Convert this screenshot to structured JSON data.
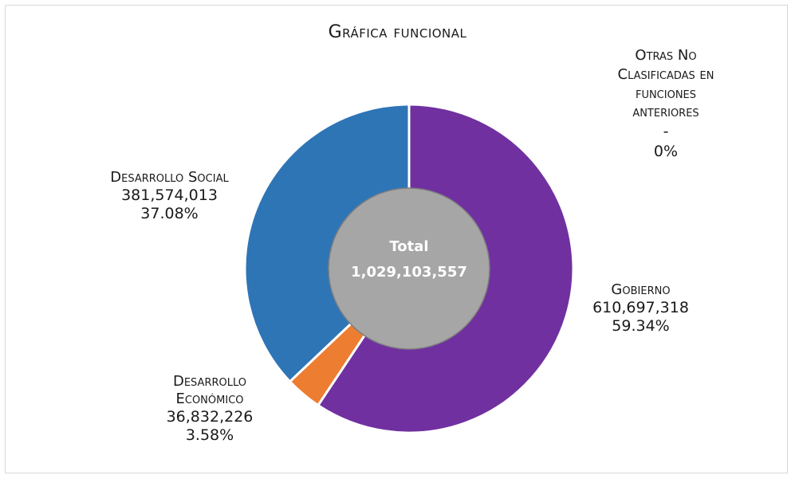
{
  "chart_data": {
    "type": "pie",
    "subtype": "donut",
    "title": "Gráfica funcional",
    "center_label": "Total",
    "center_value": "1,029,103,557",
    "slices": [
      {
        "label": "Gobierno",
        "value": 610697318,
        "value_text": "610,697,318",
        "percent_text": "59.34%",
        "color": "#7030a0"
      },
      {
        "label": "Desarrollo Económico",
        "value": 36832226,
        "value_text": "36,832,226",
        "percent_text": "3.58%",
        "color": "#ed7d31"
      },
      {
        "label": "Desarrollo Social",
        "value": 381574013,
        "value_text": "381,574,013",
        "percent_text": "37.08%",
        "color": "#2e75b6"
      },
      {
        "label": "Otras No Clasificadas en funciones anteriores",
        "value": 0,
        "value_text": "-",
        "percent_text": "0%",
        "color": "#a5a5a5"
      }
    ],
    "center_color": "#a6a6a6",
    "legend": "none"
  },
  "labels": {
    "gobierno_name": "Gobierno",
    "des_social_name": "Desarrollo Social",
    "des_econ_name_1": "Desarrollo",
    "des_econ_name_2": "Económico",
    "otras_name_1": "Otras No",
    "otras_name_2": "Clasificadas en",
    "otras_name_3": "funciones",
    "otras_name_4": "anteriores"
  }
}
